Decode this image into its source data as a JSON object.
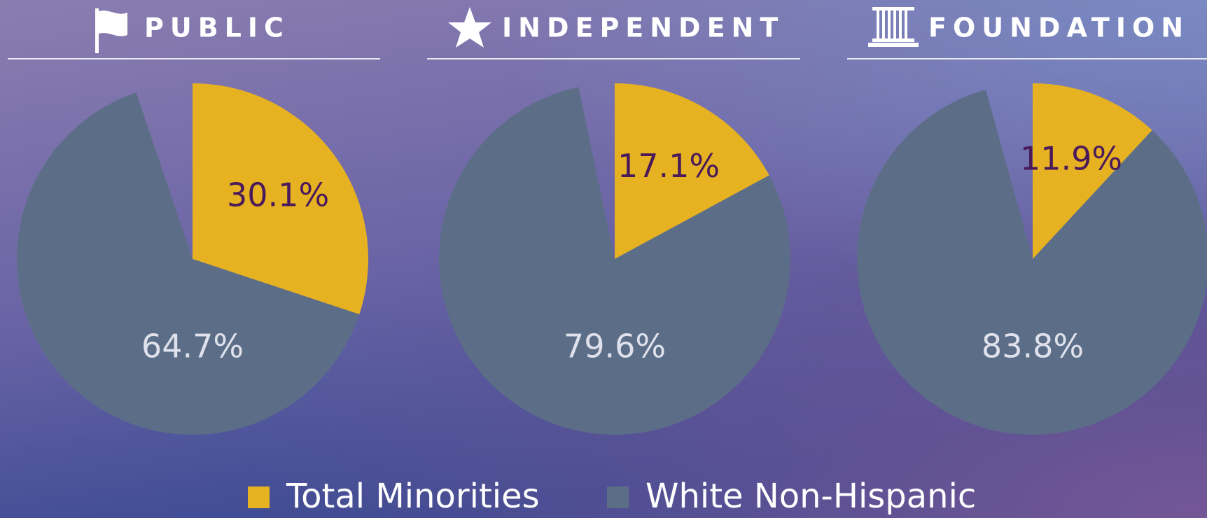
{
  "chart_data": [
    {
      "type": "pie",
      "title": "PUBLIC",
      "values": [
        30.1,
        64.7
      ],
      "value_labels": [
        "30.1%",
        "64.7%"
      ],
      "colors": [
        "#e6b222",
        "#5c6e87"
      ]
    },
    {
      "type": "pie",
      "title": "INDEPENDENT",
      "values": [
        17.1,
        79.6
      ],
      "value_labels": [
        "17.1%",
        "79.6%"
      ],
      "colors": [
        "#e6b222",
        "#5c6e87"
      ]
    },
    {
      "type": "pie",
      "title": "FOUNDATION",
      "values": [
        11.9,
        83.8
      ],
      "value_labels": [
        "11.9%",
        "83.8%"
      ],
      "colors": [
        "#e6b222",
        "#5c6e87"
      ]
    }
  ],
  "legend": {
    "labels": [
      "Total Minorities",
      "White Non-Hispanic"
    ],
    "colors": [
      "#e6b222",
      "#5c6e87"
    ]
  }
}
